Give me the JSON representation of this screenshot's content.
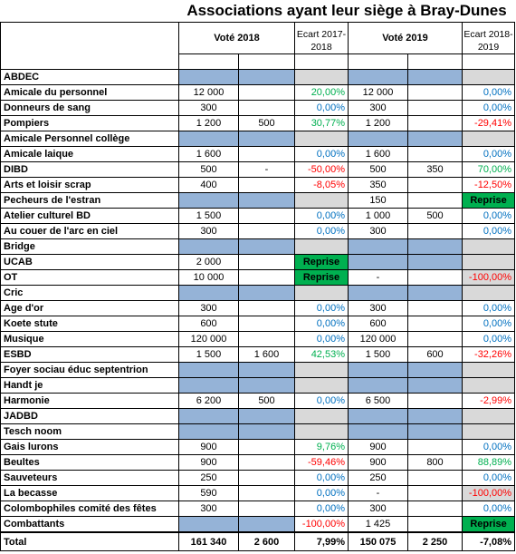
{
  "title": "Associations ayant leur siège à Bray-Dunes",
  "header": {
    "vote_2018": "Voté 2018",
    "ecart_2018": "Ecart 2017-2018",
    "vote_2019": "Voté 2019",
    "ecart_2019": "Ecart 2018-2019"
  },
  "rows": [
    {
      "name": "ABDEC",
      "cells": [
        null,
        null,
        null,
        null,
        null,
        null
      ]
    },
    {
      "name": "Amicale du personnel",
      "cells": [
        "12 000",
        null,
        "20,00%",
        "12 000",
        null,
        "0,00%"
      ]
    },
    {
      "name": "Donneurs de sang",
      "cells": [
        "300",
        null,
        "0,00%",
        "300",
        null,
        "0,00%"
      ]
    },
    {
      "name": "Pompiers",
      "cells": [
        "1 200",
        "500",
        "30,77%",
        "1 200",
        null,
        "-29,41%"
      ]
    },
    {
      "name": "Amicale Personnel collège",
      "cells": [
        null,
        null,
        null,
        null,
        null,
        null
      ]
    },
    {
      "name": "Amicale laique",
      "cells": [
        "1 600",
        null,
        "0,00%",
        "1 600",
        null,
        "0,00%"
      ]
    },
    {
      "name": "DIBD",
      "cells": [
        "500",
        "-",
        "-50,00%",
        "500",
        "350",
        "70,00%"
      ]
    },
    {
      "name": "Arts et loisir scrap",
      "cells": [
        "400",
        null,
        "-8,05%",
        "350",
        null,
        "-12,50%"
      ]
    },
    {
      "name": "Pecheurs de l'estran",
      "cells": [
        null,
        null,
        null,
        "150",
        null,
        "Reprise"
      ]
    },
    {
      "name": "Atelier culturel BD",
      "cells": [
        "1 500",
        null,
        "0,00%",
        "1 000",
        "500",
        "0,00%"
      ]
    },
    {
      "name": "Au couer de l'arc en ciel",
      "cells": [
        "300",
        null,
        "0,00%",
        "300",
        null,
        "0,00%"
      ]
    },
    {
      "name": "Bridge",
      "cells": [
        null,
        null,
        null,
        null,
        null,
        null
      ]
    },
    {
      "name": "UCAB",
      "cells": [
        "2 000",
        null,
        "Reprise",
        null,
        null,
        null
      ]
    },
    {
      "name": "OT",
      "cells": [
        "10 000",
        null,
        "Reprise",
        "-",
        null,
        "-100,00%"
      ]
    },
    {
      "name": "Cric",
      "cells": [
        null,
        null,
        null,
        null,
        null,
        null
      ]
    },
    {
      "name": "Age d'or",
      "cells": [
        "300",
        null,
        "0,00%",
        "300",
        null,
        "0,00%"
      ]
    },
    {
      "name": "Koete stute",
      "cells": [
        "600",
        null,
        "0,00%",
        "600",
        null,
        "0,00%"
      ]
    },
    {
      "name": "Musique",
      "cells": [
        "120 000",
        null,
        "0,00%",
        "120 000",
        null,
        "0,00%"
      ]
    },
    {
      "name": "ESBD",
      "cells": [
        "1 500",
        "1 600",
        "42,53%",
        "1 500",
        "600",
        "-32,26%"
      ]
    },
    {
      "name": "Foyer sociau éduc septentrion",
      "cells": [
        null,
        null,
        null,
        null,
        null,
        null
      ]
    },
    {
      "name": "Handt je",
      "cells": [
        null,
        null,
        null,
        null,
        null,
        null
      ]
    },
    {
      "name": "Harmonie",
      "cells": [
        "6 200",
        "500",
        "0,00%",
        "6 500",
        null,
        "-2,99%"
      ]
    },
    {
      "name": "JADBD",
      "cells": [
        null,
        null,
        null,
        null,
        null,
        null
      ]
    },
    {
      "name": "Tesch noom",
      "cells": [
        null,
        null,
        null,
        null,
        null,
        null
      ]
    },
    {
      "name": "Gais lurons",
      "cells": [
        "900",
        null,
        "9,76%",
        "900",
        null,
        "0,00%"
      ]
    },
    {
      "name": "Beultes",
      "cells": [
        "900",
        null,
        "-59,46%",
        "900",
        "800",
        "88,89%"
      ]
    },
    {
      "name": "Sauveteurs",
      "cells": [
        "250",
        null,
        "0,00%",
        "250",
        null,
        "0,00%"
      ]
    },
    {
      "name": "La becasse",
      "cells": [
        "590",
        null,
        "0,00%",
        "-",
        null,
        "-100,00%"
      ]
    },
    {
      "name": "Colombophiles comité des fêtes",
      "cells": [
        "300",
        null,
        "0,00%",
        "300",
        null,
        "0,00%"
      ]
    },
    {
      "name": "Combattants",
      "cells": [
        null,
        null,
        "-100,00%",
        "1 425",
        null,
        "Reprise"
      ]
    }
  ],
  "total": {
    "name": "Total",
    "cells": [
      "161 340",
      "2 600",
      "7,99%",
      "150 075",
      "2 250",
      "-7,08%"
    ]
  }
}
